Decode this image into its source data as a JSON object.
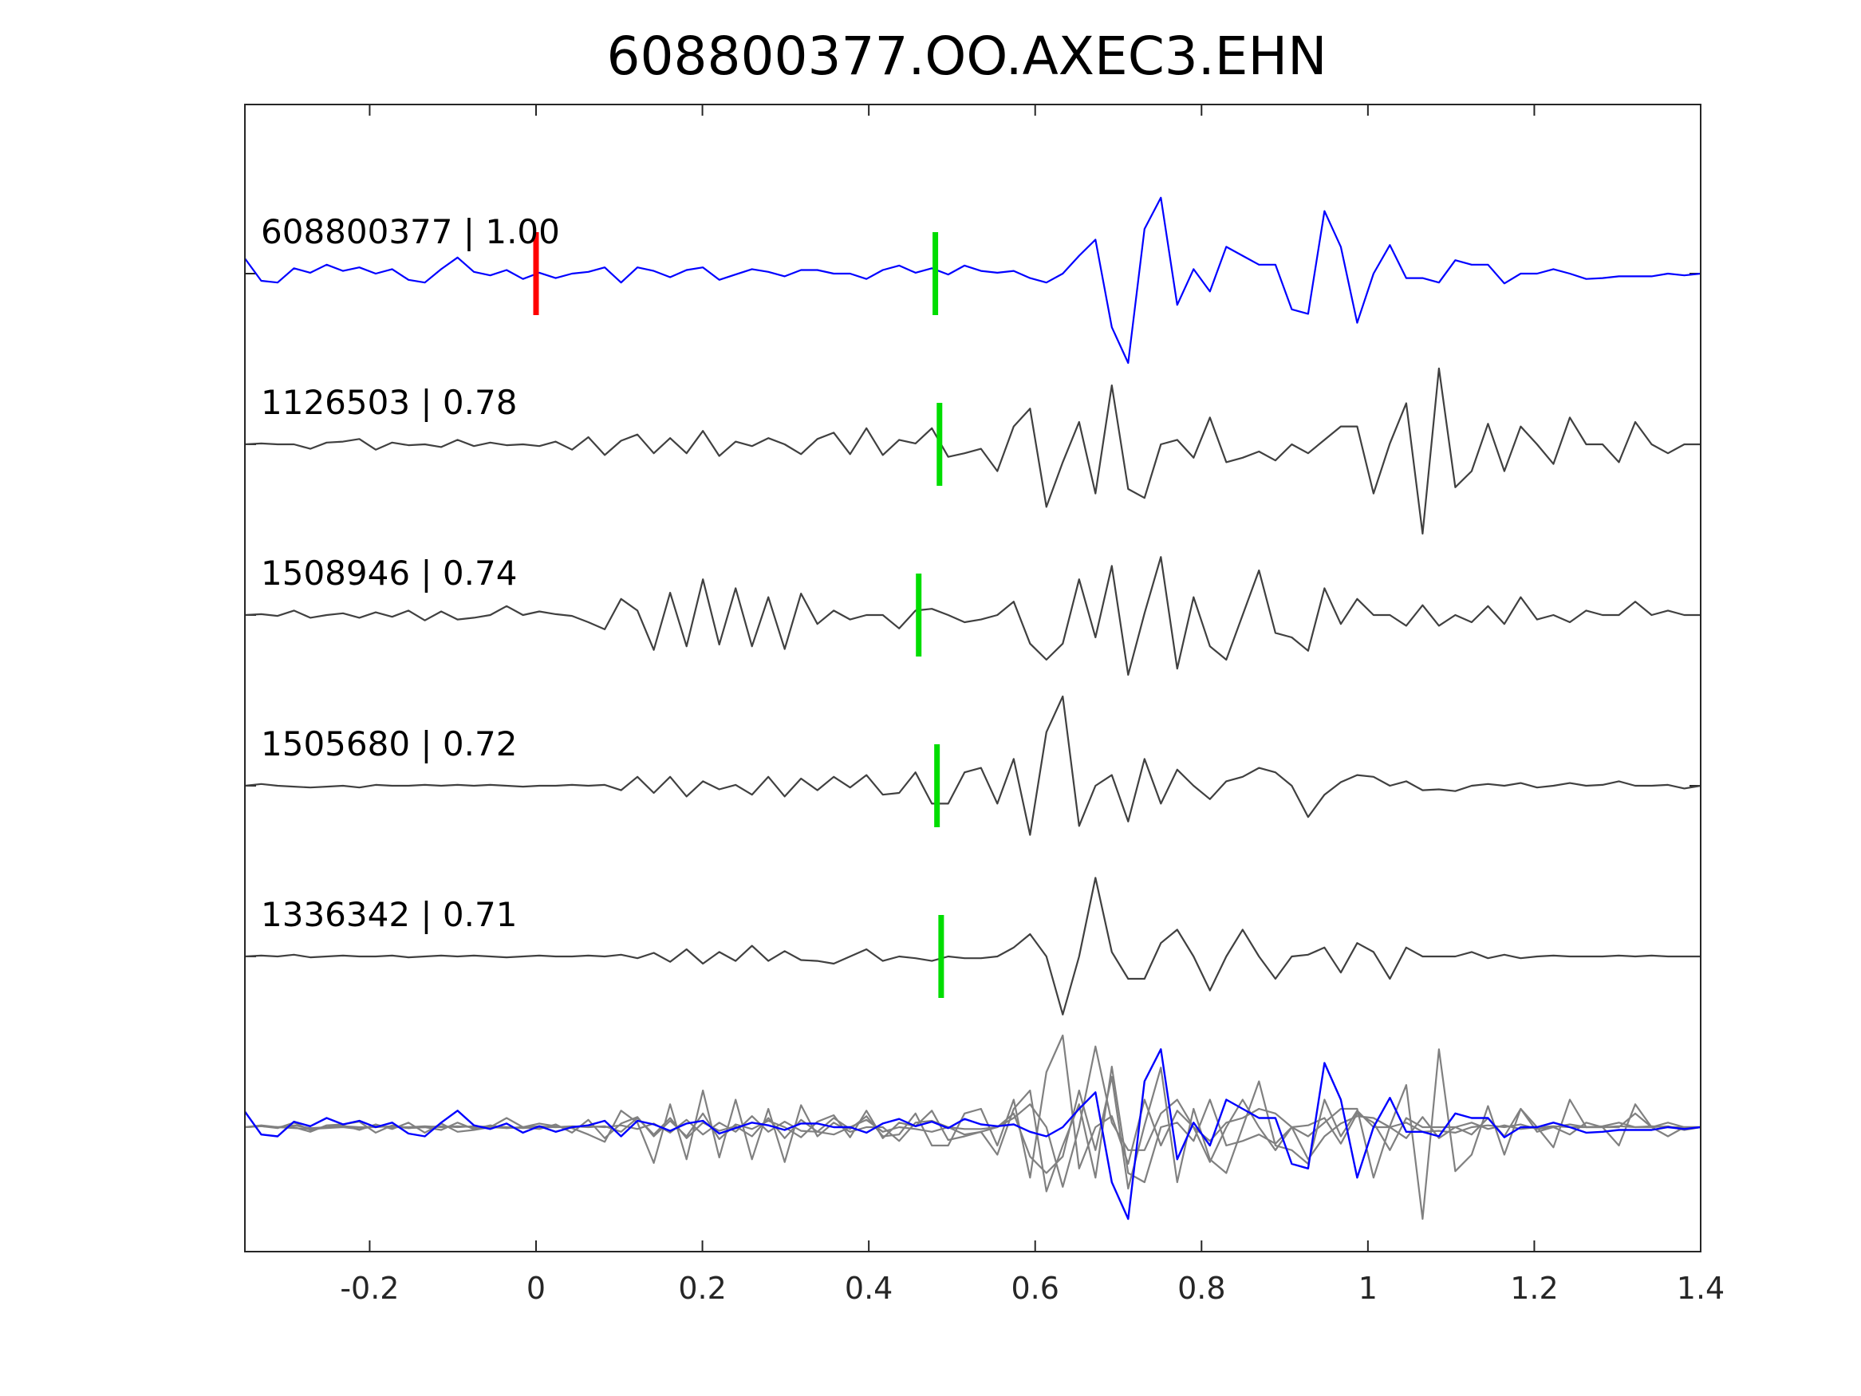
{
  "chart_data": {
    "type": "line",
    "title": "608800377.OO.AXEC3.EHN",
    "xlabel": "",
    "ylabel": "",
    "xlim": [
      -0.35,
      1.4
    ],
    "xticks": [
      -0.2,
      0,
      0.2,
      0.4,
      0.6,
      0.8,
      1,
      1.2,
      1.4
    ],
    "xtick_labels": [
      "-0.2",
      "0",
      "0.2",
      "0.4",
      "0.6",
      "0.8",
      "1",
      "1.2",
      "1.4"
    ],
    "grid": false,
    "legend": "none",
    "colors": {
      "template": "#0000ff",
      "match": "#404040",
      "overlay": "#808080",
      "origin_pick": "#ff0000",
      "arrival_pick": "#00dd00",
      "axes": "#262626"
    },
    "origin_pick_time": 0.0,
    "traces": [
      {
        "label": "608800377 | 1.00",
        "pick_time": 0.48,
        "color": "template",
        "y": [
          0.17,
          -0.08,
          -0.1,
          0.06,
          0.01,
          0.1,
          0.03,
          0.07,
          0.0,
          0.05,
          -0.07,
          -0.1,
          0.05,
          0.18,
          0.02,
          -0.02,
          0.04,
          -0.06,
          0.01,
          -0.05,
          0.0,
          0.02,
          0.07,
          -0.1,
          0.07,
          0.03,
          -0.04,
          0.04,
          0.07,
          -0.07,
          -0.01,
          0.05,
          0.02,
          -0.03,
          0.04,
          0.04,
          0.0,
          0.0,
          -0.06,
          0.04,
          0.09,
          0.01,
          0.06,
          -0.01,
          0.09,
          0.03,
          0.01,
          0.03,
          -0.05,
          -0.1,
          0.0,
          0.2,
          0.38,
          -0.6,
          -1.0,
          0.5,
          0.85,
          -0.35,
          0.05,
          -0.2,
          0.3,
          0.2,
          0.1,
          0.1,
          -0.4,
          -0.45,
          0.7,
          0.3,
          -0.55,
          0.0,
          0.32,
          -0.05,
          -0.05,
          -0.1,
          0.15,
          0.1,
          0.1,
          -0.11,
          0.0,
          0.0,
          0.05,
          0.0,
          -0.06,
          -0.05,
          -0.03,
          -0.03,
          -0.03,
          0.0,
          -0.02,
          0.0
        ]
      },
      {
        "label": "1126503 | 0.78",
        "pick_time": 0.485,
        "color": "match",
        "y": [
          0.0,
          0.01,
          0.0,
          0.0,
          -0.05,
          0.02,
          0.03,
          0.06,
          -0.06,
          0.02,
          -0.01,
          0.0,
          -0.03,
          0.05,
          -0.02,
          0.02,
          -0.01,
          0.0,
          -0.02,
          0.03,
          -0.06,
          0.08,
          -0.12,
          0.04,
          0.11,
          -0.1,
          0.07,
          -0.1,
          0.15,
          -0.13,
          0.03,
          -0.02,
          0.07,
          0.0,
          -0.11,
          0.06,
          0.13,
          -0.11,
          0.18,
          -0.12,
          0.05,
          0.01,
          0.18,
          -0.14,
          -0.1,
          -0.05,
          -0.3,
          0.2,
          0.4,
          -0.7,
          -0.2,
          0.25,
          -0.55,
          0.66,
          -0.5,
          -0.6,
          0.0,
          0.05,
          -0.15,
          0.3,
          -0.2,
          -0.15,
          -0.08,
          -0.18,
          0.0,
          -0.1,
          0.05,
          0.2,
          0.2,
          -0.55,
          0.01,
          0.46,
          -1.0,
          0.85,
          -0.48,
          -0.3,
          0.23,
          -0.3,
          0.2,
          0.0,
          -0.22,
          0.3,
          0.0,
          0.0,
          -0.2,
          0.25,
          0.0,
          -0.1,
          0.0,
          0.0
        ]
      },
      {
        "label": "1508946 | 0.74",
        "pick_time": 0.46,
        "color": "match",
        "y": [
          0.0,
          0.01,
          -0.01,
          0.05,
          -0.03,
          0.0,
          0.02,
          -0.03,
          0.03,
          -0.02,
          0.05,
          -0.06,
          0.04,
          -0.05,
          -0.03,
          0.0,
          0.1,
          0.0,
          0.04,
          0.01,
          -0.01,
          -0.08,
          -0.16,
          0.18,
          0.05,
          -0.39,
          0.25,
          -0.35,
          0.4,
          -0.33,
          0.3,
          -0.35,
          0.2,
          -0.38,
          0.24,
          -0.1,
          0.05,
          -0.05,
          0.0,
          0.0,
          -0.15,
          0.05,
          0.07,
          0.0,
          -0.08,
          -0.05,
          0.0,
          0.15,
          -0.32,
          -0.5,
          -0.32,
          0.4,
          -0.25,
          0.55,
          -0.67,
          0.02,
          0.65,
          -0.6,
          0.2,
          -0.35,
          -0.5,
          0.0,
          0.5,
          -0.2,
          -0.25,
          -0.4,
          0.3,
          -0.1,
          0.18,
          0.0,
          0.0,
          -0.12,
          0.11,
          -0.12,
          0.0,
          -0.08,
          0.1,
          -0.1,
          0.2,
          -0.05,
          0.0,
          -0.08,
          0.05,
          0.0,
          0.0,
          0.15,
          0.0,
          0.05,
          0.0,
          0.0
        ]
      },
      {
        "label": "1505680 | 0.72",
        "pick_time": 0.482,
        "color": "match",
        "y": [
          0.0,
          0.02,
          0.0,
          -0.01,
          -0.02,
          -0.01,
          0.0,
          -0.02,
          0.01,
          0.0,
          0.0,
          0.01,
          0.0,
          0.01,
          0.0,
          0.01,
          0.0,
          -0.01,
          0.0,
          0.0,
          0.01,
          0.0,
          0.01,
          -0.05,
          0.1,
          -0.08,
          0.1,
          -0.12,
          0.05,
          -0.04,
          0.01,
          -0.1,
          0.1,
          -0.12,
          0.08,
          -0.05,
          0.1,
          -0.02,
          0.12,
          -0.1,
          -0.08,
          0.15,
          -0.2,
          -0.2,
          0.15,
          0.2,
          -0.2,
          0.3,
          -0.55,
          0.6,
          1.0,
          -0.45,
          0.0,
          0.12,
          -0.4,
          0.3,
          -0.2,
          0.18,
          0.0,
          -0.15,
          0.05,
          0.1,
          0.2,
          0.15,
          0.0,
          -0.35,
          -0.1,
          0.04,
          0.12,
          0.1,
          0.0,
          0.05,
          -0.05,
          -0.04,
          -0.06,
          0.0,
          0.02,
          0.0,
          0.03,
          -0.02,
          0.0,
          0.03,
          0.0,
          0.01,
          0.05,
          0.0,
          0.0,
          0.01,
          -0.03,
          0.0
        ]
      },
      {
        "label": "1336342 | 0.71",
        "pick_time": 0.487,
        "color": "match",
        "y": [
          0.0,
          0.01,
          0.0,
          0.02,
          -0.01,
          0.0,
          0.01,
          0.0,
          0.0,
          0.01,
          -0.01,
          0.0,
          0.01,
          0.0,
          0.01,
          0.0,
          -0.01,
          0.0,
          0.01,
          0.0,
          0.0,
          0.01,
          0.0,
          0.02,
          -0.02,
          0.04,
          -0.06,
          0.08,
          -0.08,
          0.05,
          -0.05,
          0.12,
          -0.05,
          0.06,
          -0.04,
          -0.05,
          -0.08,
          0.0,
          0.08,
          -0.05,
          0.0,
          -0.02,
          -0.05,
          0.0,
          -0.02,
          -0.02,
          0.0,
          0.1,
          0.25,
          0.0,
          -0.65,
          0.0,
          0.88,
          0.05,
          -0.25,
          -0.25,
          0.15,
          0.3,
          0.0,
          -0.38,
          0.0,
          0.3,
          0.0,
          -0.25,
          0.0,
          0.02,
          0.1,
          -0.18,
          0.15,
          0.05,
          -0.25,
          0.1,
          0.0,
          0.0,
          0.0,
          0.05,
          -0.02,
          0.02,
          -0.02,
          0.0,
          0.01,
          0.0,
          0.0,
          0.0,
          0.01,
          0.0,
          0.01,
          0.0,
          0.0,
          0.0
        ]
      }
    ]
  }
}
